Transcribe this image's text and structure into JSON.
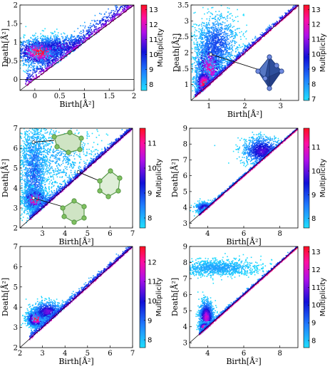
{
  "chart_data": [
    {
      "type": "heatmap",
      "subtype": "persistence-diagram",
      "xlabel": "Birth[Å²]",
      "ylabel": "Death[Å²]",
      "xlim": [
        -0.3,
        2
      ],
      "ylim": [
        -0.3,
        2
      ],
      "xticks": [
        "0",
        "0.5",
        "1",
        "1.5",
        "2"
      ],
      "yticks": [
        "0",
        "0.5",
        "1",
        "1.5",
        "2"
      ],
      "colorbar": {
        "label": "Multiplicity",
        "min": 7.6,
        "max": 13.3,
        "ticks": [
          "8",
          "9",
          "10",
          "11",
          "12",
          "13"
        ]
      },
      "hline_y": 0,
      "clusters": [
        {
          "x": 0.1,
          "y": 0.75,
          "sx": 0.25,
          "sy": 0.18,
          "w": 1.0,
          "n": 1500
        },
        {
          "x": 0.6,
          "y": 0.9,
          "sx": 0.4,
          "sy": 0.15,
          "w": 0.55,
          "n": 900
        }
      ],
      "band": {
        "from": -0.2,
        "to": 2,
        "offset": 0.3,
        "w": 0.8
      },
      "inset": null
    },
    {
      "type": "heatmap",
      "subtype": "persistence-diagram",
      "xlabel": "Birth[Å²]",
      "ylabel": "Death[Å²]",
      "xlim": [
        0.5,
        3.5
      ],
      "ylim": [
        0.5,
        3.5
      ],
      "xticks": [
        "1",
        "2",
        "3"
      ],
      "yticks": [
        "1",
        "1.5",
        "2",
        "2.5",
        "3",
        "3.5"
      ],
      "colorbar": {
        "label": "Multiplicity",
        "min": 6.9,
        "max": 13.3,
        "ticks": [
          "7",
          "8",
          "9",
          "10",
          "11",
          "12",
          "13"
        ]
      },
      "hline_y": null,
      "clusters": [
        {
          "x": 1.0,
          "y": 1.5,
          "sx": 0.2,
          "sy": 0.5,
          "w": 0.8,
          "n": 1500
        },
        {
          "x": 1.2,
          "y": 2.3,
          "sx": 0.3,
          "sy": 0.45,
          "w": 0.35,
          "n": 1100
        },
        {
          "x": 0.85,
          "y": 1.05,
          "sx": 0.12,
          "sy": 0.2,
          "w": 1.0,
          "n": 600
        }
      ],
      "band": {
        "from": 0.6,
        "to": 3.5,
        "offset": 0.12,
        "w": 0.9
      },
      "inset": "octahedron"
    },
    {
      "type": "heatmap",
      "subtype": "persistence-diagram",
      "xlabel": "Birth[Å²]",
      "ylabel": "Death[Å²]",
      "xlim": [
        2,
        7
      ],
      "ylim": [
        2,
        7
      ],
      "xticks": [
        "3",
        "4",
        "5",
        "6",
        "7"
      ],
      "yticks": [
        "2",
        "3",
        "4",
        "5",
        "6",
        "7"
      ],
      "colorbar": {
        "label": "Multiplicity",
        "min": 7.6,
        "max": 11.6,
        "ticks": [
          "8",
          "9",
          "10",
          "11"
        ]
      },
      "hline_y": null,
      "clusters": [
        {
          "x": 2.65,
          "y": 3.45,
          "sx": 0.25,
          "sy": 0.25,
          "w": 1.0,
          "n": 1300
        },
        {
          "x": 2.6,
          "y": 4.8,
          "sx": 0.3,
          "sy": 1.3,
          "w": 0.3,
          "n": 1500
        },
        {
          "x": 3.5,
          "y": 5.6,
          "sx": 1.0,
          "sy": 0.9,
          "w": 0.12,
          "n": 900
        }
      ],
      "band": {
        "from": 2.4,
        "to": 7,
        "offset": 0.22,
        "w": 0.75
      },
      "inset": "rings"
    },
    {
      "type": "heatmap",
      "subtype": "persistence-diagram",
      "xlabel": "Birth[Å²]",
      "ylabel": "Death[Å²]",
      "xlim": [
        3,
        9
      ],
      "ylim": [
        2.7,
        9
      ],
      "xticks": [
        "4",
        "6",
        "8"
      ],
      "yticks": [
        "3",
        "4",
        "5",
        "6",
        "7",
        "8",
        "9"
      ],
      "colorbar": {
        "label": "Multiplicity",
        "min": 7.6,
        "max": 11.8,
        "ticks": [
          "8",
          "9",
          "10",
          "11"
        ]
      },
      "hline_y": null,
      "clusters": [
        {
          "x": 7.0,
          "y": 7.6,
          "sx": 0.55,
          "sy": 0.45,
          "w": 0.55,
          "n": 1100
        },
        {
          "x": 3.8,
          "y": 4.0,
          "sx": 0.25,
          "sy": 0.18,
          "w": 0.6,
          "n": 500
        }
      ],
      "band": {
        "from": 3.5,
        "to": 9,
        "offset": 0.1,
        "w": 0.95
      },
      "inset": null
    },
    {
      "type": "heatmap",
      "subtype": "persistence-diagram",
      "xlabel": "Birth[Å²]",
      "ylabel": "Death[Å²]",
      "xlim": [
        2,
        7
      ],
      "ylim": [
        2,
        7
      ],
      "xticks": [
        "2",
        "3",
        "4",
        "5",
        "6",
        "7"
      ],
      "yticks": [
        "2",
        "3",
        "4",
        "5",
        "6",
        "7"
      ],
      "colorbar": {
        "label": "Multiplicity",
        "min": 7.6,
        "max": 12.8,
        "ticks": [
          "8",
          "9",
          "10",
          "11",
          "12"
        ]
      },
      "hline_y": null,
      "clusters": [
        {
          "x": 2.7,
          "y": 3.45,
          "sx": 0.2,
          "sy": 0.2,
          "w": 1.0,
          "n": 1300
        },
        {
          "x": 3.2,
          "y": 3.8,
          "sx": 0.35,
          "sy": 0.25,
          "w": 0.6,
          "n": 800
        }
      ],
      "band": {
        "from": 2.4,
        "to": 7,
        "offset": 0.2,
        "w": 0.8
      },
      "inset": null
    },
    {
      "type": "heatmap",
      "subtype": "persistence-diagram",
      "xlabel": "Birth[Å²]",
      "ylabel": "Death[Å²]",
      "xlim": [
        3,
        9
      ],
      "ylim": [
        2.7,
        9
      ],
      "xticks": [
        "4",
        "6",
        "8"
      ],
      "yticks": [
        "3",
        "4",
        "5",
        "6",
        "7",
        "8",
        "9"
      ],
      "colorbar": {
        "label": "Multiplicity",
        "min": 7.6,
        "max": 13.3,
        "ticks": [
          "8",
          "9",
          "10",
          "11",
          "12",
          "13"
        ]
      },
      "hline_y": null,
      "clusters": [
        {
          "x": 3.9,
          "y": 4.6,
          "sx": 0.2,
          "sy": 0.5,
          "w": 0.75,
          "n": 1200
        },
        {
          "x": 4.5,
          "y": 7.7,
          "sx": 1.2,
          "sy": 0.25,
          "w": 0.15,
          "n": 1100
        },
        {
          "x": 3.8,
          "y": 4.0,
          "sx": 0.15,
          "sy": 0.15,
          "w": 1.0,
          "n": 500
        }
      ],
      "band": {
        "from": 3.5,
        "to": 9,
        "offset": 0.12,
        "w": 0.95
      },
      "inset": null
    }
  ]
}
